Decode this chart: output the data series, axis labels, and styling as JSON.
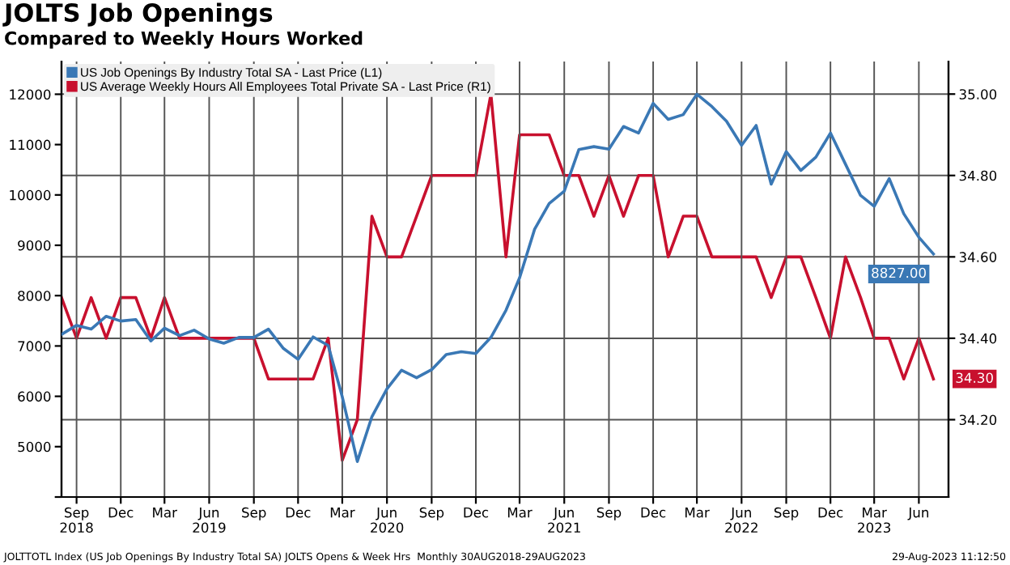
{
  "chart_data": {
    "type": "line",
    "title": "JOLTS Job Openings",
    "subtitle": "Compared to Weekly Hours Worked",
    "x": [
      "2018-08",
      "2018-09",
      "2018-10",
      "2018-11",
      "2018-12",
      "2019-01",
      "2019-02",
      "2019-03",
      "2019-04",
      "2019-05",
      "2019-06",
      "2019-07",
      "2019-08",
      "2019-09",
      "2019-10",
      "2019-11",
      "2019-12",
      "2020-01",
      "2020-02",
      "2020-03",
      "2020-04",
      "2020-05",
      "2020-06",
      "2020-07",
      "2020-08",
      "2020-09",
      "2020-10",
      "2020-11",
      "2020-12",
      "2021-01",
      "2021-02",
      "2021-03",
      "2021-04",
      "2021-05",
      "2021-06",
      "2021-07",
      "2021-08",
      "2021-09",
      "2021-10",
      "2021-11",
      "2021-12",
      "2022-01",
      "2022-02",
      "2022-03",
      "2022-04",
      "2022-05",
      "2022-06",
      "2022-07",
      "2022-08",
      "2022-09",
      "2022-10",
      "2022-11",
      "2022-12",
      "2023-01",
      "2023-02",
      "2023-03",
      "2023-04",
      "2023-05",
      "2023-06",
      "2023-07"
    ],
    "series": [
      {
        "name": "US Job Openings By Industry Total SA - Last Price (L1)",
        "color": "#3a78b5",
        "axis": "y",
        "values": [
          7230,
          7410,
          7335,
          7590,
          7495,
          7525,
          7100,
          7355,
          7205,
          7315,
          7140,
          7055,
          7170,
          7170,
          7335,
          6950,
          6735,
          7180,
          7010,
          5990,
          4705,
          5595,
          6150,
          6520,
          6370,
          6530,
          6830,
          6885,
          6850,
          7170,
          7710,
          8354,
          9320,
          9830,
          10075,
          10900,
          10960,
          10910,
          11360,
          11230,
          11820,
          11500,
          11595,
          12000,
          11755,
          11465,
          10985,
          11380,
          10215,
          10860,
          10485,
          10750,
          11230,
          10610,
          9990,
          9775,
          10325,
          9625,
          9160,
          8827
        ],
        "value_labels": [
          null,
          null,
          null,
          null,
          null,
          null,
          null,
          null,
          null,
          null,
          null,
          null,
          null,
          null,
          null,
          null,
          null,
          null,
          null,
          null,
          null,
          null,
          null,
          null,
          null,
          null,
          null,
          null,
          null,
          null,
          null,
          null,
          null,
          null,
          null,
          null,
          null,
          null,
          null,
          null,
          null,
          null,
          null,
          null,
          null,
          null,
          null,
          null,
          null,
          null,
          null,
          null,
          null,
          null,
          null,
          null,
          null,
          null,
          null,
          "8827.00"
        ]
      },
      {
        "name": "US Average Weekly Hours All Employees Total Private SA - Last Price (R1)",
        "color": "#c8102e",
        "axis": "y2",
        "values": [
          34.5,
          34.4,
          34.5,
          34.4,
          34.5,
          34.5,
          34.4,
          34.5,
          34.4,
          34.4,
          34.4,
          34.4,
          34.4,
          34.4,
          34.3,
          34.3,
          34.3,
          34.3,
          34.4,
          34.1,
          34.2,
          34.7,
          34.6,
          34.6,
          34.7,
          34.8,
          34.8,
          34.8,
          34.8,
          35.0,
          34.6,
          34.9,
          34.9,
          34.9,
          34.8,
          34.8,
          34.7,
          34.8,
          34.7,
          34.8,
          34.8,
          34.6,
          34.7,
          34.7,
          34.6,
          34.6,
          34.6,
          34.6,
          34.5,
          34.6,
          34.6,
          34.5,
          34.4,
          34.6,
          34.5,
          34.4,
          34.4,
          34.3,
          34.4,
          34.3
        ],
        "value_labels": [
          null,
          null,
          null,
          null,
          null,
          null,
          null,
          null,
          null,
          null,
          null,
          null,
          null,
          null,
          null,
          null,
          null,
          null,
          null,
          null,
          null,
          null,
          null,
          null,
          null,
          null,
          null,
          null,
          null,
          null,
          null,
          null,
          null,
          null,
          null,
          null,
          null,
          null,
          null,
          null,
          null,
          null,
          null,
          null,
          null,
          null,
          null,
          null,
          null,
          null,
          null,
          null,
          null,
          null,
          null,
          null,
          null,
          null,
          null,
          "34.30"
        ]
      }
    ],
    "xlim": [
      "2018-08",
      "2023-08"
    ],
    "xticks": [
      {
        "value": "2018-09",
        "label": "Sep\n2018"
      },
      {
        "value": "2018-12",
        "label": "Dec"
      },
      {
        "value": "2019-03",
        "label": "Mar"
      },
      {
        "value": "2019-06",
        "label": "Jun\n2019"
      },
      {
        "value": "2019-09",
        "label": "Sep"
      },
      {
        "value": "2019-12",
        "label": "Dec"
      },
      {
        "value": "2020-03",
        "label": "Mar"
      },
      {
        "value": "2020-06",
        "label": "Jun\n2020"
      },
      {
        "value": "2020-09",
        "label": "Sep"
      },
      {
        "value": "2020-12",
        "label": "Dec"
      },
      {
        "value": "2021-03",
        "label": "Mar"
      },
      {
        "value": "2021-06",
        "label": "Jun\n2021"
      },
      {
        "value": "2021-09",
        "label": "Sep"
      },
      {
        "value": "2021-12",
        "label": "Dec"
      },
      {
        "value": "2022-03",
        "label": "Mar"
      },
      {
        "value": "2022-06",
        "label": "Jun\n2022"
      },
      {
        "value": "2022-09",
        "label": "Sep"
      },
      {
        "value": "2022-12",
        "label": "Dec"
      },
      {
        "value": "2023-03",
        "label": "Mar\n2023"
      },
      {
        "value": "2023-06",
        "label": "Jun"
      }
    ],
    "ylim": [
      4000,
      12650
    ],
    "yticks": [
      {
        "value": 4000,
        "label": null
      },
      5000,
      6000,
      7000,
      8000,
      9000,
      10000,
      11000,
      12000
    ],
    "y2lim": [
      34.01,
      35.08
    ],
    "y2ticks": [
      {
        "value": 34.2,
        "label": "34.20"
      },
      {
        "value": 34.4,
        "label": "34.40"
      },
      {
        "value": 34.6,
        "label": "34.60"
      },
      {
        "value": 34.8,
        "label": "34.80"
      },
      {
        "value": 35.0,
        "label": "35.00"
      }
    ],
    "grid": true,
    "legend": "top left",
    "marker": "none",
    "line_style": "solid",
    "annotations": [
      "JOLTTOTL Index (US Job Openings By Industry Total SA) JOLTS Opens & Week Hrs  Monthly 30AUG2018-29AUG2023",
      "29-Aug-2023 11:12:50"
    ]
  }
}
